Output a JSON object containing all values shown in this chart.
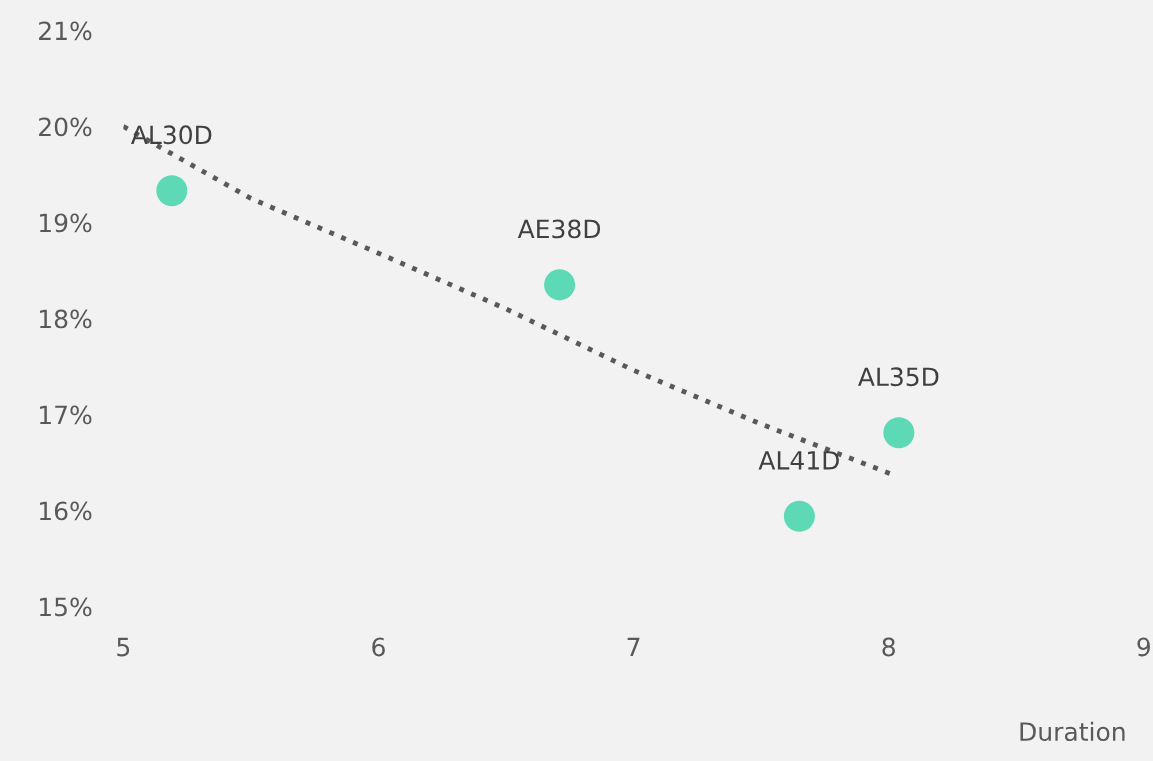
{
  "chart_data": {
    "type": "scatter",
    "xlabel": "Duration",
    "xlim": [
      5,
      9
    ],
    "xticks": [
      5,
      6,
      7,
      8,
      9
    ],
    "ylim": [
      15,
      21
    ],
    "yticks": [
      {
        "value": 15,
        "label": "15%"
      },
      {
        "value": 16,
        "label": "16%"
      },
      {
        "value": 17,
        "label": "17%"
      },
      {
        "value": 18,
        "label": "18%"
      },
      {
        "value": 19,
        "label": "19%"
      },
      {
        "value": 20,
        "label": "20%"
      },
      {
        "value": 21,
        "label": "21%"
      }
    ],
    "grid": false,
    "legend": false,
    "marker": "circle",
    "series": [
      {
        "color": "#5dd9b5",
        "x": [
          5.19,
          6.71,
          8.04,
          7.65
        ],
        "values": [
          19.33,
          18.35,
          16.81,
          15.94
        ]
      },
      {
        "type": "line",
        "color": "#595959",
        "line_style": "dotted",
        "marker": "none",
        "x": [
          5.0,
          5.5,
          6.0,
          6.5,
          7.0,
          7.5,
          8.01
        ],
        "values": [
          20.0,
          19.25,
          18.68,
          18.1,
          17.46,
          16.9,
          16.38
        ]
      }
    ],
    "annotations": [
      {
        "text": "AL30D",
        "x": 5.19,
        "y": 19.33
      },
      {
        "text": "AE38D",
        "x": 6.71,
        "y": 18.35
      },
      {
        "text": "AL35D",
        "x": 8.04,
        "y": 16.81
      },
      {
        "text": "AL41D",
        "x": 7.65,
        "y": 15.94
      }
    ]
  }
}
